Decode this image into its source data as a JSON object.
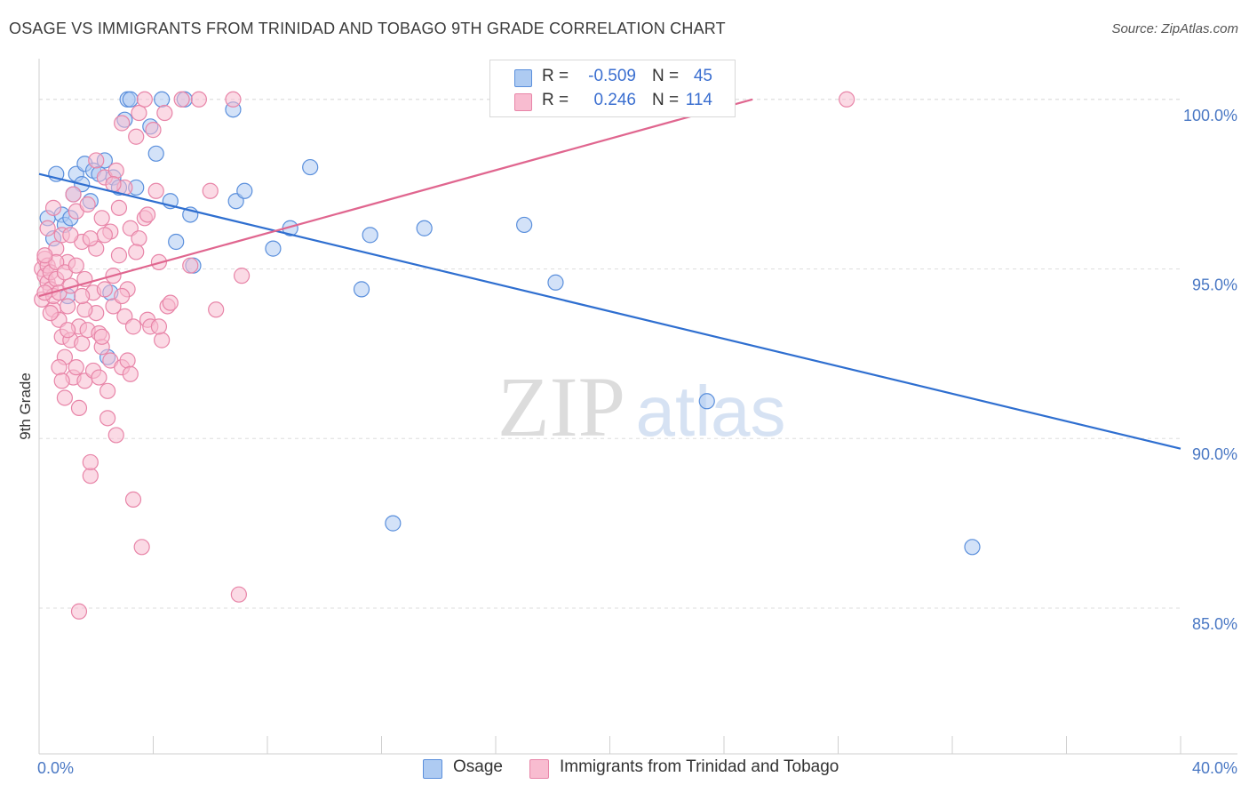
{
  "title": "OSAGE VS IMMIGRANTS FROM TRINIDAD AND TOBAGO 9TH GRADE CORRELATION CHART",
  "source": "Source: ZipAtlas.com",
  "watermark": {
    "zip": "ZIP",
    "atlas": "atlas"
  },
  "legend": {
    "osage": {
      "r_label": "R =",
      "r_value": "-0.509",
      "n_label": "N =",
      "n_value": "45"
    },
    "trinidad": {
      "r_label": "R =",
      "r_value": "0.246",
      "n_label": "N =",
      "n_value": "114"
    }
  },
  "bottom_legend": {
    "osage": "Osage",
    "trinidad": "Immigrants from Trinidad and Tobago"
  },
  "colors": {
    "osage_fill": "#aecbf2",
    "osage_stroke": "#5a8fdc",
    "osage_line": "#2f6fd0",
    "trin_fill": "#f8bcd0",
    "trin_stroke": "#e885a8",
    "trin_line": "#e0668f",
    "axis_text": "#4a78c4",
    "grid": "#dedede"
  },
  "chart_data": {
    "type": "scatter",
    "title": "OSAGE VS IMMIGRANTS FROM TRINIDAD AND TOBAGO 9TH GRADE CORRELATION CHART",
    "xlabel": "",
    "ylabel": "9th Grade",
    "xlim": [
      0,
      40
    ],
    "ylim": [
      80.7,
      101.2
    ],
    "x_tick_labels": [
      "0.0%",
      "40.0%"
    ],
    "y_ticks": [
      85,
      90,
      95,
      100
    ],
    "y_tick_labels": [
      "85.0%",
      "90.0%",
      "95.0%",
      "100.0%"
    ],
    "grid": true,
    "series": [
      {
        "name": "Osage",
        "r": -0.509,
        "n": 45,
        "trend": {
          "x": [
            0,
            40
          ],
          "y": [
            97.8,
            89.7
          ]
        },
        "points": [
          [
            0.3,
            96.5
          ],
          [
            0.6,
            97.8
          ],
          [
            0.8,
            96.6
          ],
          [
            0.9,
            96.3
          ],
          [
            1.1,
            96.5
          ],
          [
            1.3,
            97.8
          ],
          [
            1.5,
            97.5
          ],
          [
            1.6,
            98.1
          ],
          [
            1.8,
            97.0
          ],
          [
            1.9,
            97.9
          ],
          [
            2.1,
            97.8
          ],
          [
            2.3,
            98.2
          ],
          [
            2.5,
            94.3
          ],
          [
            2.6,
            97.7
          ],
          [
            2.8,
            97.4
          ],
          [
            3.1,
            100.0
          ],
          [
            3.2,
            100.0
          ],
          [
            3.4,
            97.4
          ],
          [
            3.9,
            99.2
          ],
          [
            4.1,
            98.4
          ],
          [
            4.6,
            97.0
          ],
          [
            4.8,
            95.8
          ],
          [
            5.1,
            100.0
          ],
          [
            5.3,
            96.6
          ],
          [
            5.4,
            95.1
          ],
          [
            6.8,
            99.7
          ],
          [
            6.9,
            97.0
          ],
          [
            7.2,
            97.3
          ],
          [
            8.2,
            95.6
          ],
          [
            8.8,
            96.2
          ],
          [
            9.5,
            98.0
          ],
          [
            11.3,
            94.4
          ],
          [
            11.6,
            96.0
          ],
          [
            12.4,
            87.5
          ],
          [
            13.5,
            96.2
          ],
          [
            17.0,
            96.3
          ],
          [
            18.1,
            94.6
          ],
          [
            23.4,
            91.1
          ],
          [
            32.7,
            86.8
          ],
          [
            0.5,
            95.9
          ],
          [
            1.0,
            94.2
          ],
          [
            2.4,
            92.4
          ],
          [
            3.0,
            99.4
          ],
          [
            4.3,
            100.0
          ],
          [
            1.2,
            97.2
          ]
        ]
      },
      {
        "name": "Immigrants from Trinidad and Tobago",
        "r": 0.246,
        "n": 114,
        "trend": {
          "x": [
            0,
            25
          ],
          "y": [
            94.2,
            100.0
          ]
        },
        "points": [
          [
            0.1,
            94.1
          ],
          [
            0.1,
            95.0
          ],
          [
            0.2,
            94.8
          ],
          [
            0.2,
            95.3
          ],
          [
            0.3,
            94.6
          ],
          [
            0.3,
            95.1
          ],
          [
            0.4,
            94.4
          ],
          [
            0.4,
            94.9
          ],
          [
            0.5,
            93.8
          ],
          [
            0.5,
            94.2
          ],
          [
            0.6,
            95.6
          ],
          [
            0.6,
            94.7
          ],
          [
            0.7,
            93.5
          ],
          [
            0.7,
            94.3
          ],
          [
            0.8,
            96.0
          ],
          [
            0.8,
            93.0
          ],
          [
            0.9,
            92.4
          ],
          [
            0.9,
            91.2
          ],
          [
            1.0,
            95.2
          ],
          [
            1.0,
            93.9
          ],
          [
            1.1,
            94.5
          ],
          [
            1.1,
            92.9
          ],
          [
            1.2,
            97.2
          ],
          [
            1.2,
            91.8
          ],
          [
            1.3,
            96.7
          ],
          [
            1.3,
            92.1
          ],
          [
            1.4,
            93.3
          ],
          [
            1.4,
            90.9
          ],
          [
            1.5,
            95.8
          ],
          [
            1.5,
            92.8
          ],
          [
            1.6,
            94.7
          ],
          [
            1.6,
            91.7
          ],
          [
            1.7,
            96.9
          ],
          [
            1.7,
            93.2
          ],
          [
            1.8,
            88.9
          ],
          [
            1.8,
            89.3
          ],
          [
            1.9,
            94.3
          ],
          [
            1.9,
            92.0
          ],
          [
            2.0,
            93.7
          ],
          [
            2.0,
            95.6
          ],
          [
            2.1,
            91.8
          ],
          [
            2.1,
            93.1
          ],
          [
            2.2,
            96.5
          ],
          [
            2.2,
            92.7
          ],
          [
            2.3,
            97.7
          ],
          [
            2.3,
            94.4
          ],
          [
            2.4,
            91.4
          ],
          [
            2.4,
            90.6
          ],
          [
            2.5,
            96.1
          ],
          [
            2.5,
            92.3
          ],
          [
            2.6,
            94.8
          ],
          [
            2.6,
            93.9
          ],
          [
            2.7,
            97.9
          ],
          [
            2.7,
            90.1
          ],
          [
            2.8,
            95.4
          ],
          [
            2.8,
            96.8
          ],
          [
            2.9,
            92.1
          ],
          [
            2.9,
            99.3
          ],
          [
            3.0,
            93.6
          ],
          [
            3.0,
            97.4
          ],
          [
            3.1,
            94.4
          ],
          [
            3.1,
            92.3
          ],
          [
            3.2,
            96.2
          ],
          [
            3.2,
            91.9
          ],
          [
            3.3,
            88.2
          ],
          [
            3.3,
            93.3
          ],
          [
            3.4,
            98.9
          ],
          [
            3.5,
            95.9
          ],
          [
            3.5,
            99.6
          ],
          [
            3.6,
            86.8
          ],
          [
            3.7,
            96.5
          ],
          [
            3.7,
            100.0
          ],
          [
            3.8,
            93.5
          ],
          [
            3.9,
            93.3
          ],
          [
            4.0,
            99.1
          ],
          [
            4.1,
            97.3
          ],
          [
            4.2,
            95.2
          ],
          [
            4.3,
            92.9
          ],
          [
            4.4,
            99.6
          ],
          [
            4.5,
            93.9
          ],
          [
            5.0,
            100.0
          ],
          [
            5.3,
            95.1
          ],
          [
            5.6,
            100.0
          ],
          [
            6.0,
            97.3
          ],
          [
            6.2,
            93.8
          ],
          [
            6.8,
            100.0
          ],
          [
            7.0,
            85.4
          ],
          [
            7.1,
            94.8
          ],
          [
            1.4,
            84.9
          ],
          [
            28.3,
            100.0
          ],
          [
            0.2,
            94.3
          ],
          [
            0.3,
            96.2
          ],
          [
            0.4,
            93.7
          ],
          [
            0.6,
            95.2
          ],
          [
            0.9,
            94.9
          ],
          [
            1.1,
            96.0
          ],
          [
            1.3,
            95.1
          ],
          [
            1.6,
            93.8
          ],
          [
            2.0,
            98.2
          ],
          [
            2.3,
            96.0
          ],
          [
            2.6,
            97.5
          ],
          [
            3.8,
            96.6
          ],
          [
            4.6,
            94.0
          ],
          [
            0.2,
            95.4
          ],
          [
            0.5,
            96.8
          ],
          [
            0.7,
            92.1
          ],
          [
            1.0,
            93.2
          ],
          [
            1.5,
            94.2
          ],
          [
            1.8,
            95.9
          ],
          [
            2.2,
            93.0
          ],
          [
            2.9,
            94.2
          ],
          [
            3.4,
            95.5
          ],
          [
            4.2,
            93.3
          ],
          [
            0.8,
            91.7
          ]
        ]
      }
    ]
  }
}
